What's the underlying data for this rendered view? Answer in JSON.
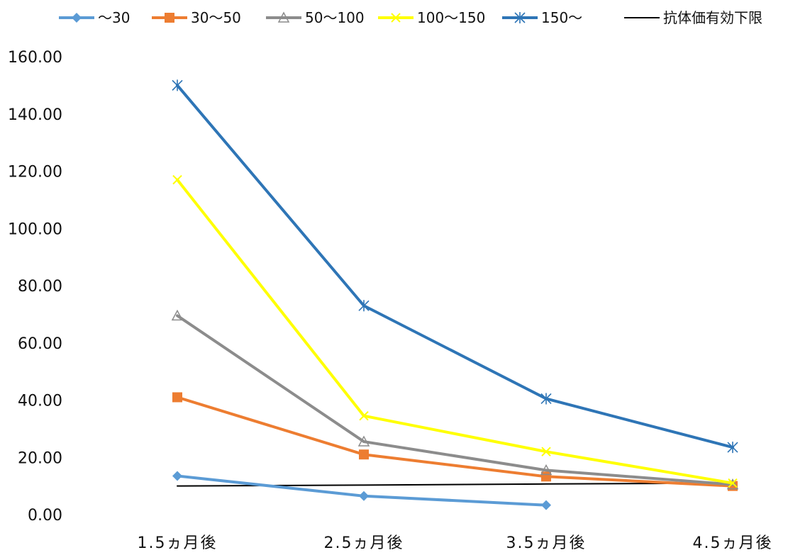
{
  "chart_data": {
    "type": "line",
    "categories": [
      "1.5ヵ月後",
      "2.5ヵ月後",
      "3.5ヵ月後",
      "4.5ヵ月後"
    ],
    "ylim": [
      0,
      160
    ],
    "yticks": [
      "0.00",
      "20.00",
      "40.00",
      "60.00",
      "80.00",
      "100.00",
      "120.00",
      "140.00",
      "160.00"
    ],
    "grid": false,
    "legend_position": "top",
    "series": [
      {
        "name": "〜30",
        "values": [
          13.5,
          6.5,
          3.3,
          null
        ],
        "color": "#5b9bd5",
        "marker": "diamond"
      },
      {
        "name": "30〜50",
        "values": [
          41.0,
          21.0,
          13.3,
          10.0
        ],
        "color": "#ed7d31",
        "marker": "square"
      },
      {
        "name": "50〜100",
        "values": [
          69.5,
          25.5,
          15.5,
          10.5
        ],
        "color": "#8c8c8c",
        "marker": "triangle"
      },
      {
        "name": "100〜150",
        "values": [
          117.0,
          34.5,
          22.0,
          11.0
        ],
        "color": "#ffff00",
        "marker": "x"
      },
      {
        "name": "150〜",
        "values": [
          150.0,
          73.0,
          40.5,
          23.5
        ],
        "color": "#2e75b6",
        "marker": "star"
      },
      {
        "name": "抗体価有効下限",
        "values": [
          10.0,
          10.3,
          10.7,
          11.0
        ],
        "color": "#000000",
        "marker": "none"
      }
    ]
  }
}
